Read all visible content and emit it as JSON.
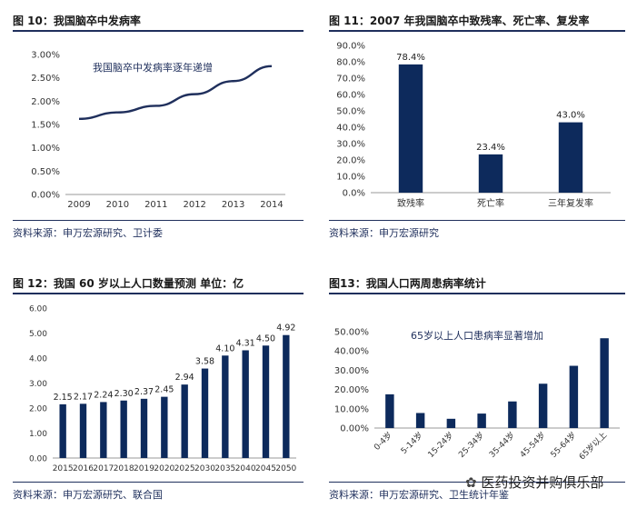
{
  "panels": {
    "p10": {
      "title": "图 10：我国脑卒中发病率",
      "source": "资料来源：申万宏源研究、卫计委"
    },
    "p11": {
      "title": "图 11：2007 年我国脑卒中致残率、死亡率、复发率",
      "source": "资料来源：申万宏源研究"
    },
    "p12": {
      "title": "图 12：我国 60 岁以上人口数量预测 单位：亿",
      "source": "资料来源：申万宏源研究、联合国"
    },
    "p13": {
      "title": "图13：我国人口两周患病率统计",
      "source": "资料来源：申万宏源研究、卫生统计年鉴"
    }
  },
  "watermark": "医药投资并购俱乐部",
  "chart_data": [
    {
      "id": "p10",
      "type": "line",
      "x": [
        "2009",
        "2010",
        "2011",
        "2012",
        "2013",
        "2014"
      ],
      "series": [
        {
          "values": [
            1.62,
            1.76,
            1.9,
            2.15,
            2.43,
            2.75
          ],
          "color": "#1f2f5c"
        }
      ],
      "yticks": [
        "0.00%",
        "0.50%",
        "1.00%",
        "1.50%",
        "2.00%",
        "2.50%",
        "3.00%"
      ],
      "ylim": [
        0,
        3
      ],
      "annotation": "我国脑卒中发病率逐年递增",
      "grid": false
    },
    {
      "id": "p11",
      "type": "bar",
      "categories": [
        "致残率",
        "死亡率",
        "三年复发率"
      ],
      "values": [
        78.4,
        23.4,
        43.0
      ],
      "data_labels": [
        "78.4%",
        "23.4%",
        "43.0%"
      ],
      "yticks": [
        "0.0%",
        "10.0%",
        "20.0%",
        "30.0%",
        "40.0%",
        "50.0%",
        "60.0%",
        "70.0%",
        "80.0%",
        "90.0%"
      ],
      "ylim": [
        0,
        90
      ],
      "color": "#0d2a5c",
      "grid": false
    },
    {
      "id": "p12",
      "type": "bar",
      "categories": [
        "2015",
        "2016",
        "2017",
        "2018",
        "2019",
        "2020",
        "2025",
        "2030",
        "2035",
        "2040",
        "2045",
        "2050"
      ],
      "values": [
        2.15,
        2.17,
        2.24,
        2.3,
        2.37,
        2.45,
        2.94,
        3.58,
        4.1,
        4.31,
        4.5,
        4.92
      ],
      "data_labels": [
        "2.15",
        "2.17",
        "2.24",
        "2.30",
        "2.37",
        "2.45",
        "2.94",
        "3.58",
        "4.10",
        "4.31",
        "4.50",
        "4.92"
      ],
      "yticks": [
        "0.00",
        "1.00",
        "2.00",
        "3.00",
        "4.00",
        "5.00",
        "6.00"
      ],
      "ylim": [
        0,
        6
      ],
      "color": "#0d2a5c",
      "grid": false
    },
    {
      "id": "p13",
      "type": "bar",
      "categories": [
        "0-4岁",
        "5-14岁",
        "15-24岁",
        "25-34岁",
        "35-44岁",
        "45-54岁",
        "55-64岁",
        "65岁以上"
      ],
      "values": [
        17.5,
        7.8,
        4.8,
        7.5,
        13.8,
        23.0,
        32.3,
        46.6
      ],
      "yticks": [
        "0.00%",
        "10.00%",
        "20.00%",
        "30.00%",
        "40.00%",
        "50.00%"
      ],
      "ylim": [
        0,
        50
      ],
      "annotation": "65岁以上人口患病率显著增加",
      "color": "#0d2a5c",
      "grid": false
    }
  ]
}
